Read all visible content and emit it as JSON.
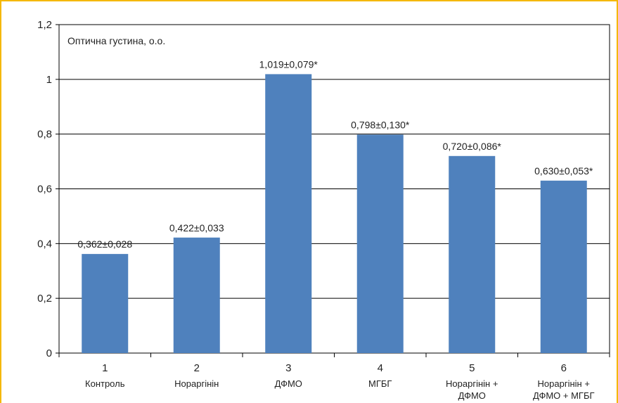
{
  "chart_data": {
    "type": "bar",
    "title": "Оптична густина, о.о.",
    "categories": [
      "1",
      "2",
      "3",
      "4",
      "5",
      "6"
    ],
    "category_names": [
      [
        "Контроль"
      ],
      [
        "Нораргінін"
      ],
      [
        "ДФМО"
      ],
      [
        "МГБГ"
      ],
      [
        "Нораргінін +",
        "ДФМО"
      ],
      [
        "Нораргінін +",
        "ДФМО + МГБГ"
      ]
    ],
    "values": [
      0.362,
      0.422,
      1.019,
      0.798,
      0.72,
      0.63
    ],
    "value_labels": [
      "0,362±0,028",
      "0,422±0,033",
      "1,019±0,079*",
      "0,798±0,130*",
      "0,720±0,086*",
      "0,630±0,053*"
    ],
    "yticks": [
      "0",
      "0,2",
      "0,4",
      "0,6",
      "0,8",
      "1",
      "1,2"
    ],
    "ylim": [
      0,
      1.2
    ],
    "xlabel": "",
    "ylabel": "",
    "grid": true,
    "bar_color": "#4F81BD",
    "frame_color": "#F5B800"
  }
}
